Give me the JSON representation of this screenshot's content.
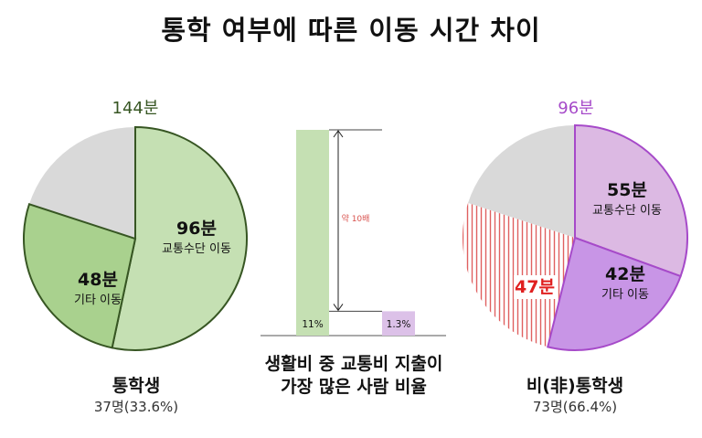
{
  "title": "통학 여부에 따른 이동 시간 차이",
  "chart_data": [
    {
      "type": "pie",
      "group": "통학생",
      "group_caption": "37명(33.6%)",
      "total_label": "144분",
      "total_minutes": 144,
      "slices": [
        {
          "name": "교통수단 이동",
          "value_label": "96분",
          "value": 96,
          "color": "#c5e0b3"
        },
        {
          "name": "기타 이동",
          "value_label": "48분",
          "value": 48,
          "color": "#a9d18e"
        }
      ],
      "remainder_color": "#d9d9d9",
      "accent": "#375623"
    },
    {
      "type": "bar",
      "caption_lines": [
        "생활비 중 교통비 지출이",
        "가장 많은 사람 비율"
      ],
      "categories": [
        "통학생",
        "비(非)통학생"
      ],
      "values": [
        11,
        1.3
      ],
      "value_labels": [
        "11%",
        "1.3%"
      ],
      "colors": [
        "#c5e0b3",
        "#dcc1e8"
      ],
      "annotation": "약 10배"
    },
    {
      "type": "pie",
      "group": "비(非)통학생",
      "group_caption": "73명(66.4%)",
      "total_label": "96분",
      "total_minutes": 96,
      "slices": [
        {
          "name": "교통수단 이동",
          "value_label": "55분",
          "value": 55,
          "color": "#dcb9e3"
        },
        {
          "name": "기타 이동",
          "value_label": "42분",
          "value": 42,
          "color": "#c895e6"
        },
        {
          "name": "",
          "value_label": "47분",
          "value": 47,
          "color": "#ffffff",
          "hatch": "#e05050"
        }
      ],
      "remainder_color": "#d9d9d9",
      "accent": "#a64ac9"
    }
  ]
}
